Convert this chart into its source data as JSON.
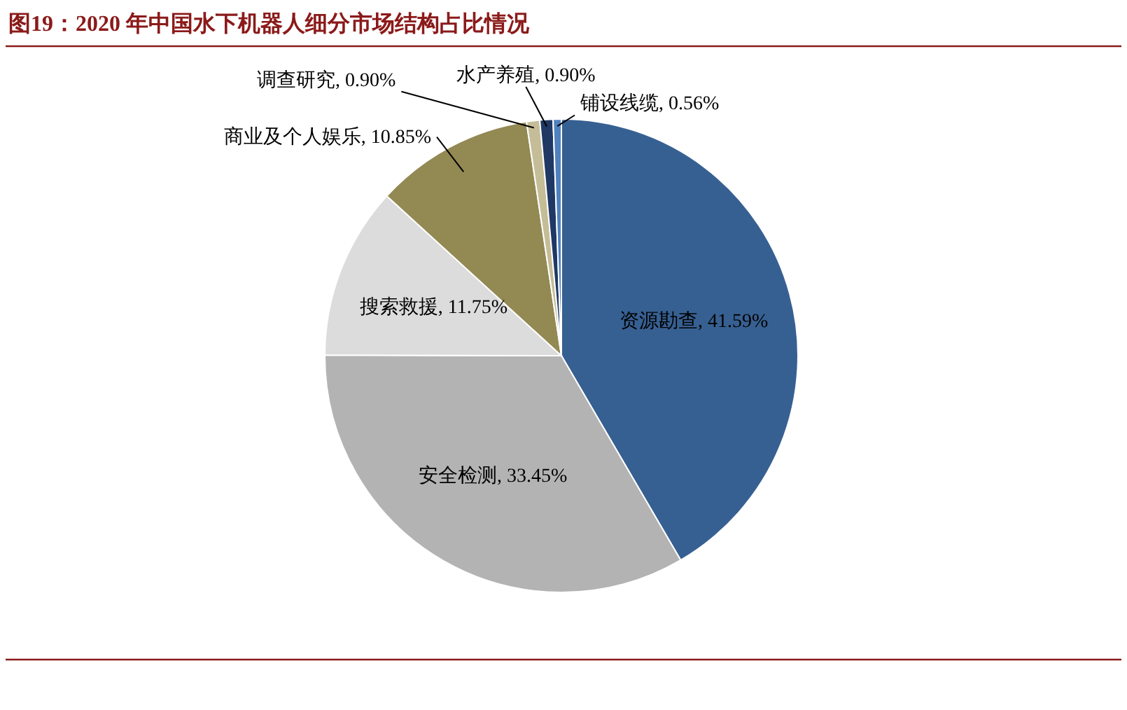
{
  "chart_data": {
    "type": "pie",
    "title": "图19：2020 年中国水下机器人细分市场结构占比情况",
    "categories": [
      "资源勘查",
      "安全检测",
      "搜索救援",
      "商业及个人娱乐",
      "调查研究",
      "水产养殖",
      "铺设线缆"
    ],
    "values": [
      41.59,
      33.45,
      11.75,
      10.85,
      0.9,
      0.9,
      0.56
    ],
    "colors": [
      "#376092",
      "#b3b3b3",
      "#dcdcdc",
      "#938953",
      "#c4bd97",
      "#1f3864",
      "#4f81bd"
    ],
    "value_labels": [
      ", 41.59%",
      ", 33.45%",
      ", 11.75%",
      ", 10.85%",
      ", 0.90%",
      ", 0.90%",
      ", 0.56%"
    ]
  }
}
